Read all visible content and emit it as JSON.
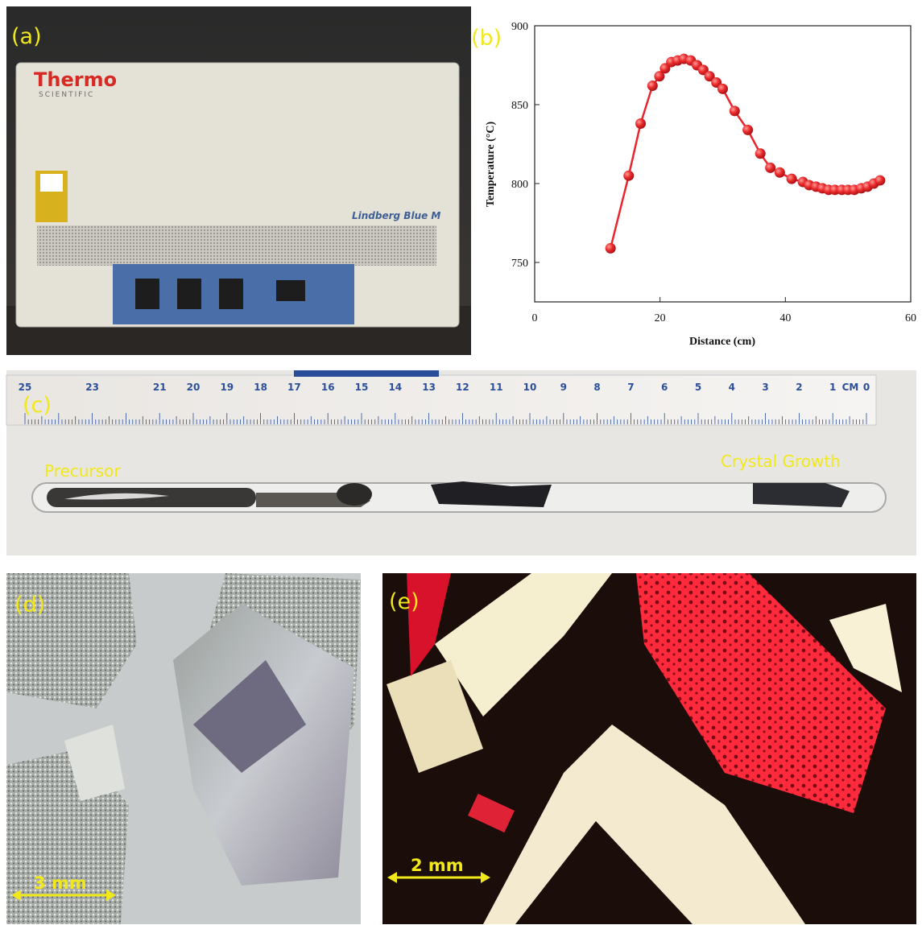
{
  "panels": {
    "a": "(a)",
    "b": "(b)",
    "c": "(c)",
    "d": "(d)",
    "e": "(e)"
  },
  "furnace": {
    "brand": "Thermo",
    "sub": "SCIENTIFIC",
    "model": "Lindberg Blue M"
  },
  "chart_data": {
    "type": "line",
    "x_label": "Distance (cm)",
    "y_label": "Temperature (°C)",
    "color": "#e8252c",
    "x": [
      12.1,
      15.0,
      16.9,
      18.8,
      19.9,
      20.8,
      21.8,
      22.8,
      23.8,
      24.9,
      25.9,
      26.9,
      27.9,
      29.0,
      30.0,
      31.9,
      34.0,
      36.0,
      37.6,
      39.1,
      41.0,
      42.8,
      43.8,
      44.9,
      45.9,
      46.9,
      47.9,
      49.0,
      50.0,
      51.0,
      52.1,
      53.1,
      54.1,
      55.1
    ],
    "values": [
      759,
      805,
      838,
      862,
      868,
      873,
      877,
      878,
      879,
      878,
      875,
      872,
      868,
      864,
      860,
      846,
      834,
      819,
      810,
      807,
      803,
      801,
      799,
      798,
      797,
      796,
      796,
      796,
      796,
      796,
      797,
      798,
      800,
      802
    ],
    "xlim": [
      0,
      60
    ],
    "xticks": [
      0,
      20,
      40,
      60
    ],
    "ylim": [
      725,
      900
    ],
    "yticks": [
      750,
      800,
      850,
      900
    ]
  },
  "tube": {
    "left": "Precursor",
    "right": "Crystal Growth",
    "ruler_marks": [
      25,
      23,
      21,
      20,
      19,
      18,
      17,
      16,
      15,
      14,
      13,
      12,
      11,
      10,
      9,
      8,
      7,
      6,
      5,
      4,
      3,
      2,
      1,
      0
    ],
    "ruler_unit": "CM"
  },
  "scale_d": "3 mm",
  "scale_e": "2 mm"
}
